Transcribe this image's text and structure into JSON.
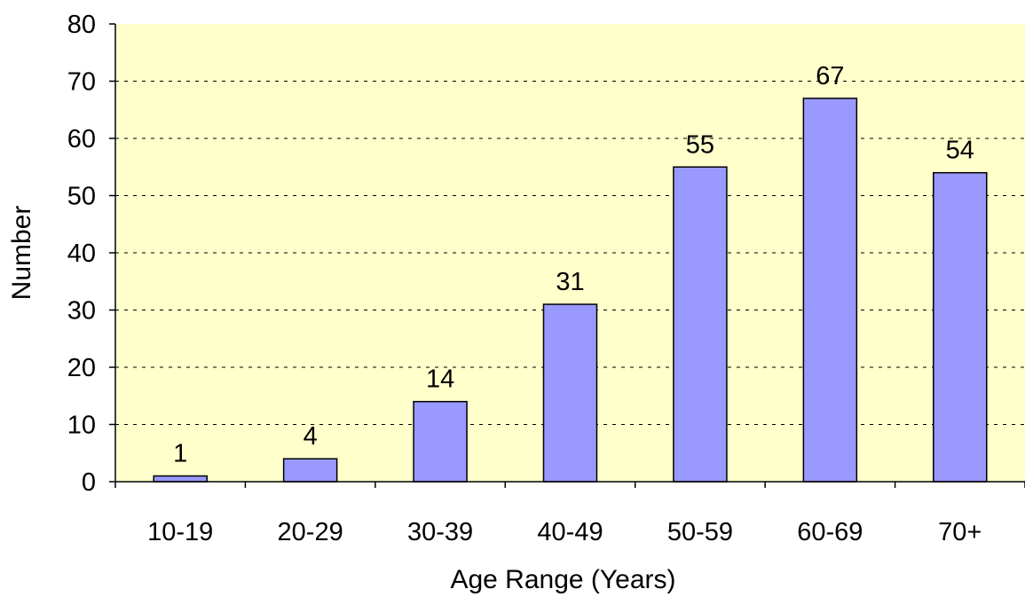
{
  "chart_data": {
    "type": "bar",
    "title": "",
    "xlabel": "Age Range (Years)",
    "ylabel": "Number",
    "categories": [
      "10-19",
      "20-29",
      "30-39",
      "40-49",
      "50-59",
      "60-69",
      "70+"
    ],
    "values": [
      1,
      4,
      14,
      31,
      55,
      67,
      54
    ],
    "data_labels": [
      "1",
      "4",
      "14",
      "31",
      "55",
      "67",
      "54"
    ],
    "ylim": [
      0,
      80
    ],
    "yticks": [
      0,
      10,
      20,
      30,
      40,
      50,
      60,
      70,
      80
    ],
    "ytick_labels": [
      "0",
      "10",
      "20",
      "30",
      "40",
      "50",
      "60",
      "70",
      "80"
    ],
    "grid": "horizontal dashed",
    "legend": "none",
    "colors": {
      "plot_background": "#FFFFCC",
      "bar_fill": "#9999FF",
      "bar_stroke": "#000000",
      "grid_line": "#000000"
    }
  }
}
